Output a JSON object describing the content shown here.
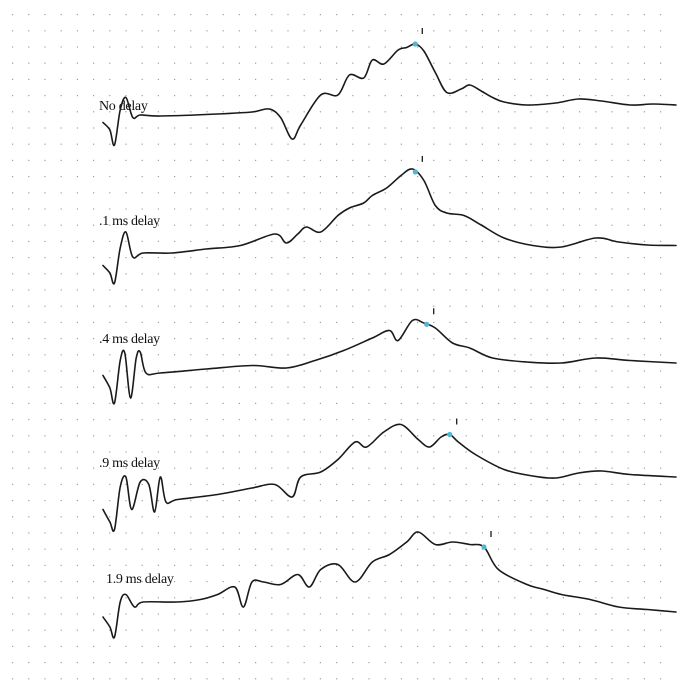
{
  "chart_data": {
    "type": "line",
    "grid": true,
    "series": [
      {
        "name": "No delay",
        "marker_x": 0.545,
        "points": [
          [
            0.0,
            0.45
          ],
          [
            0.012,
            0.3
          ],
          [
            0.02,
            0.0
          ],
          [
            0.03,
            0.7
          ],
          [
            0.04,
            0.95
          ],
          [
            0.052,
            0.55
          ],
          [
            0.065,
            0.6
          ],
          [
            0.1,
            0.58
          ],
          [
            0.2,
            0.62
          ],
          [
            0.26,
            0.66
          ],
          [
            0.29,
            0.72
          ],
          [
            0.31,
            0.55
          ],
          [
            0.33,
            0.12
          ],
          [
            0.345,
            0.4
          ],
          [
            0.38,
            1.0
          ],
          [
            0.41,
            1.0
          ],
          [
            0.43,
            1.4
          ],
          [
            0.455,
            1.34
          ],
          [
            0.47,
            1.7
          ],
          [
            0.49,
            1.62
          ],
          [
            0.515,
            1.9
          ],
          [
            0.53,
            1.95
          ],
          [
            0.545,
            2.02
          ],
          [
            0.56,
            1.88
          ],
          [
            0.58,
            1.45
          ],
          [
            0.6,
            1.05
          ],
          [
            0.625,
            1.12
          ],
          [
            0.64,
            1.2
          ],
          [
            0.66,
            1.08
          ],
          [
            0.68,
            0.95
          ],
          [
            0.7,
            0.86
          ],
          [
            0.74,
            0.8
          ],
          [
            0.79,
            0.84
          ],
          [
            0.83,
            0.92
          ],
          [
            0.87,
            0.88
          ],
          [
            0.92,
            0.8
          ],
          [
            0.96,
            0.82
          ],
          [
            1.0,
            0.8
          ]
        ]
      },
      {
        "name": ".1 ms delay",
        "marker_x": 0.545,
        "points": [
          [
            0.0,
            0.05
          ],
          [
            0.012,
            -0.1
          ],
          [
            0.02,
            -0.3
          ],
          [
            0.03,
            0.4
          ],
          [
            0.04,
            0.72
          ],
          [
            0.052,
            0.22
          ],
          [
            0.07,
            0.3
          ],
          [
            0.12,
            0.3
          ],
          [
            0.18,
            0.38
          ],
          [
            0.24,
            0.45
          ],
          [
            0.3,
            0.68
          ],
          [
            0.32,
            0.5
          ],
          [
            0.34,
            0.68
          ],
          [
            0.355,
            0.82
          ],
          [
            0.38,
            0.72
          ],
          [
            0.41,
            1.05
          ],
          [
            0.43,
            1.2
          ],
          [
            0.455,
            1.3
          ],
          [
            0.47,
            1.45
          ],
          [
            0.495,
            1.6
          ],
          [
            0.52,
            1.85
          ],
          [
            0.54,
            1.98
          ],
          [
            0.56,
            1.75
          ],
          [
            0.58,
            1.25
          ],
          [
            0.6,
            1.1
          ],
          [
            0.63,
            1.05
          ],
          [
            0.66,
            0.86
          ],
          [
            0.7,
            0.6
          ],
          [
            0.75,
            0.45
          ],
          [
            0.8,
            0.42
          ],
          [
            0.86,
            0.6
          ],
          [
            0.9,
            0.52
          ],
          [
            0.95,
            0.46
          ],
          [
            1.0,
            0.45
          ]
        ]
      },
      {
        "name": ".4 ms delay",
        "marker_x": 0.565,
        "points": [
          [
            0.0,
            0.25
          ],
          [
            0.012,
            0.0
          ],
          [
            0.02,
            -0.3
          ],
          [
            0.03,
            0.55
          ],
          [
            0.038,
            0.7
          ],
          [
            0.048,
            -0.2
          ],
          [
            0.058,
            0.6
          ],
          [
            0.065,
            0.72
          ],
          [
            0.075,
            0.3
          ],
          [
            0.1,
            0.3
          ],
          [
            0.18,
            0.38
          ],
          [
            0.26,
            0.45
          ],
          [
            0.32,
            0.4
          ],
          [
            0.37,
            0.55
          ],
          [
            0.42,
            0.75
          ],
          [
            0.47,
            1.0
          ],
          [
            0.5,
            1.15
          ],
          [
            0.515,
            0.95
          ],
          [
            0.54,
            1.35
          ],
          [
            0.56,
            1.3
          ],
          [
            0.58,
            1.2
          ],
          [
            0.61,
            0.9
          ],
          [
            0.64,
            0.8
          ],
          [
            0.68,
            0.6
          ],
          [
            0.74,
            0.52
          ],
          [
            0.8,
            0.5
          ],
          [
            0.86,
            0.6
          ],
          [
            0.92,
            0.55
          ],
          [
            1.0,
            0.5
          ]
        ]
      },
      {
        "name": ".9 ms delay",
        "marker_x": 0.605,
        "points": [
          [
            0.0,
            0.05
          ],
          [
            0.012,
            -0.2
          ],
          [
            0.02,
            -0.35
          ],
          [
            0.03,
            0.5
          ],
          [
            0.04,
            0.7
          ],
          [
            0.05,
            0.05
          ],
          [
            0.065,
            0.6
          ],
          [
            0.08,
            0.55
          ],
          [
            0.09,
            0.0
          ],
          [
            0.1,
            0.7
          ],
          [
            0.11,
            0.2
          ],
          [
            0.13,
            0.25
          ],
          [
            0.2,
            0.35
          ],
          [
            0.26,
            0.48
          ],
          [
            0.3,
            0.55
          ],
          [
            0.33,
            0.3
          ],
          [
            0.345,
            0.7
          ],
          [
            0.38,
            0.8
          ],
          [
            0.41,
            1.05
          ],
          [
            0.44,
            1.4
          ],
          [
            0.46,
            1.3
          ],
          [
            0.49,
            1.6
          ],
          [
            0.52,
            1.75
          ],
          [
            0.55,
            1.45
          ],
          [
            0.57,
            1.3
          ],
          [
            0.59,
            1.5
          ],
          [
            0.605,
            1.55
          ],
          [
            0.62,
            1.4
          ],
          [
            0.65,
            1.15
          ],
          [
            0.7,
            0.85
          ],
          [
            0.75,
            0.72
          ],
          [
            0.79,
            0.68
          ],
          [
            0.83,
            0.78
          ],
          [
            0.87,
            0.82
          ],
          [
            0.92,
            0.75
          ],
          [
            1.0,
            0.7
          ]
        ]
      },
      {
        "name": "1.9 ms delay",
        "marker_x": 0.665,
        "points": [
          [
            0.0,
            0.1
          ],
          [
            0.012,
            -0.1
          ],
          [
            0.02,
            -0.3
          ],
          [
            0.03,
            0.4
          ],
          [
            0.04,
            0.55
          ],
          [
            0.055,
            0.3
          ],
          [
            0.07,
            0.4
          ],
          [
            0.13,
            0.4
          ],
          [
            0.17,
            0.45
          ],
          [
            0.2,
            0.55
          ],
          [
            0.23,
            0.7
          ],
          [
            0.245,
            0.3
          ],
          [
            0.26,
            0.8
          ],
          [
            0.28,
            0.8
          ],
          [
            0.31,
            0.75
          ],
          [
            0.34,
            0.95
          ],
          [
            0.36,
            0.7
          ],
          [
            0.38,
            1.05
          ],
          [
            0.41,
            1.15
          ],
          [
            0.44,
            0.8
          ],
          [
            0.47,
            1.2
          ],
          [
            0.5,
            1.35
          ],
          [
            0.53,
            1.6
          ],
          [
            0.55,
            1.8
          ],
          [
            0.58,
            1.55
          ],
          [
            0.61,
            1.6
          ],
          [
            0.64,
            1.55
          ],
          [
            0.665,
            1.5
          ],
          [
            0.69,
            1.05
          ],
          [
            0.74,
            0.75
          ],
          [
            0.77,
            0.65
          ],
          [
            0.8,
            0.55
          ],
          [
            0.85,
            0.45
          ],
          [
            0.9,
            0.3
          ],
          [
            0.95,
            0.25
          ],
          [
            1.0,
            0.2
          ]
        ]
      }
    ]
  }
}
